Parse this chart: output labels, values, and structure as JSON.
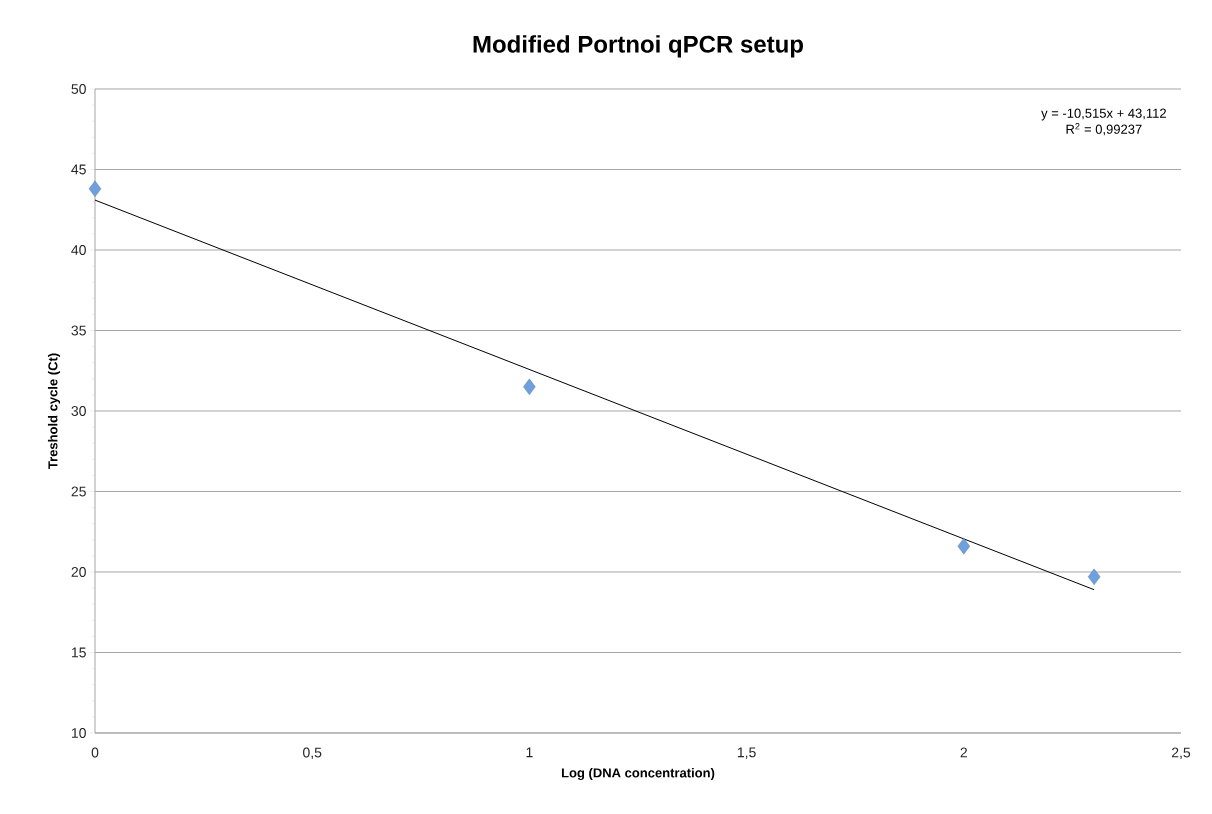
{
  "chart_data": {
    "type": "scatter",
    "title": "Modified Portnoi qPCR setup",
    "xlabel": "Log (DNA concentration)",
    "ylabel": "Treshold cycle (Ct)",
    "annotations": [
      "y = -10,515x + 43,112",
      "R$^{2}$ = 0,99237"
    ],
    "x": [
      0,
      1,
      2,
      2.3
    ],
    "series": [
      {
        "color": "#6f9fdc",
        "marker": "diamond",
        "values": [
          43.8,
          31.5,
          21.6,
          19.7
        ]
      },
      {
        "type": "line",
        "color": "#000000",
        "marker": "none",
        "line_style": "solid",
        "x": [
          0,
          2.3
        ],
        "values": [
          43.1,
          18.9
        ]
      }
    ],
    "xlim": [
      0,
      2.5
    ],
    "ylim": [
      10,
      50
    ],
    "xticks": [
      0,
      {
        "value": 0.5,
        "label": "0,5"
      },
      1,
      {
        "value": 1.5,
        "label": "1,5"
      },
      2,
      {
        "value": 2.5,
        "label": "2,5"
      }
    ],
    "yticks": [
      10,
      15,
      20,
      25,
      30,
      35,
      40,
      45,
      50
    ],
    "grid": "y"
  }
}
